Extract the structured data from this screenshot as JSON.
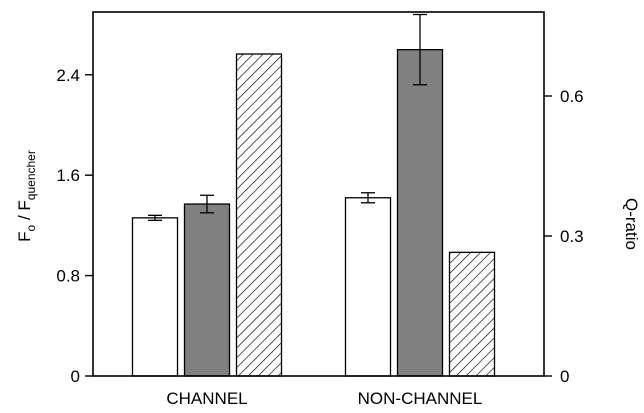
{
  "chart_data": {
    "type": "bar",
    "categories": [
      "CHANNEL",
      "NON-CHANNEL"
    ],
    "series": [
      {
        "fill": "#ffffff",
        "pattern": "none",
        "axis": "left",
        "values": [
          1.26,
          1.42
        ],
        "errors": [
          0.02,
          0.04
        ]
      },
      {
        "fill": "#808080",
        "pattern": "none",
        "axis": "left",
        "values": [
          1.37,
          2.6
        ],
        "errors": [
          0.07,
          0.28
        ]
      },
      {
        "fill": "#ffffff",
        "pattern": "diagonal-hatch",
        "axis": "right",
        "values": [
          0.69,
          0.265
        ],
        "errors": [
          null,
          null
        ]
      }
    ],
    "left_axis": {
      "label_main": "F",
      "label_sub1": "o",
      "label_mid": " / F",
      "label_sub2": "quencher",
      "ylim": [
        0,
        2.9
      ],
      "ticks": [
        0,
        0.8,
        1.6,
        2.4
      ],
      "tick_labels": [
        "0",
        "0.8",
        "1.6",
        "2.4"
      ]
    },
    "right_axis": {
      "label": "Q-ratio",
      "ylim": [
        0,
        0.78
      ],
      "ticks": [
        0,
        0.3,
        0.6
      ],
      "tick_labels": [
        "0",
        "0.3",
        "0.6"
      ]
    },
    "grid": false,
    "legend": "none"
  }
}
